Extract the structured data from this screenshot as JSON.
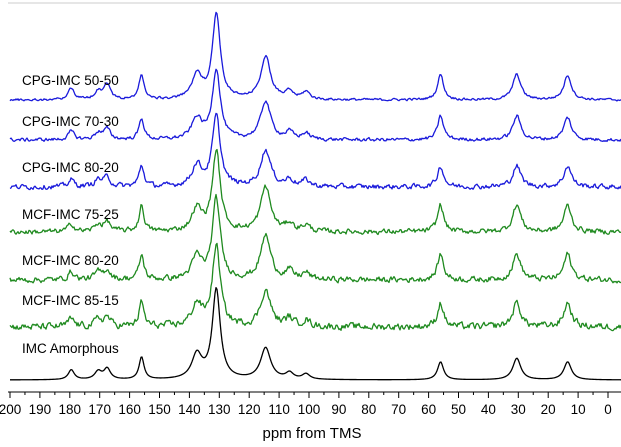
{
  "chart_data": {
    "type": "line",
    "title": "",
    "xlabel": "ppm from TMS",
    "ylabel": "",
    "xlim": [
      200,
      0
    ],
    "x_reversed": true,
    "x_ticks": [
      200,
      190,
      180,
      170,
      160,
      150,
      140,
      130,
      120,
      110,
      100,
      90,
      80,
      70,
      60,
      50,
      40,
      30,
      20,
      10,
      0
    ],
    "grid": false,
    "legend": "none",
    "colors": {
      "cpg": "#1a1adb",
      "mcf": "#1f8a1f",
      "amorphous": "#000000"
    },
    "peaks_ppm": [
      179.5,
      170.5,
      167.5,
      156,
      137.5,
      131,
      114.5,
      106.5,
      101,
      56,
      30.5,
      13.5
    ],
    "series": [
      {
        "name": "CPG-IMC 50-50",
        "color": "#1a1adb",
        "noise": 0.02,
        "peaks": [
          [
            179.5,
            0.14,
            1.2
          ],
          [
            170.5,
            0.1,
            1.4
          ],
          [
            167.5,
            0.18,
            1.3
          ],
          [
            156,
            0.3,
            1.0
          ],
          [
            137.5,
            0.28,
            2.0
          ],
          [
            131,
            1.0,
            1.6
          ],
          [
            114.5,
            0.5,
            2.0
          ],
          [
            106.5,
            0.09,
            1.5
          ],
          [
            101,
            0.09,
            1.5
          ],
          [
            56,
            0.3,
            1.2
          ],
          [
            30.5,
            0.3,
            1.6
          ],
          [
            13.5,
            0.29,
            1.5
          ]
        ]
      },
      {
        "name": "CPG-IMC 70-30",
        "color": "#1a1adb",
        "noise": 0.035,
        "peaks": [
          [
            179.5,
            0.12,
            1.2
          ],
          [
            170.5,
            0.1,
            1.4
          ],
          [
            167.5,
            0.15,
            1.3
          ],
          [
            156,
            0.3,
            1.0
          ],
          [
            137.5,
            0.3,
            2.0
          ],
          [
            131,
            1.0,
            1.6
          ],
          [
            114.5,
            0.55,
            2.0
          ],
          [
            106.5,
            0.1,
            1.5
          ],
          [
            101,
            0.09,
            1.5
          ],
          [
            56,
            0.34,
            1.2
          ],
          [
            30.5,
            0.34,
            1.6
          ],
          [
            13.5,
            0.32,
            1.5
          ]
        ]
      },
      {
        "name": "CPG-IMC 80-20",
        "color": "#1a1adb",
        "noise": 0.05,
        "peaks": [
          [
            179.5,
            0.1,
            1.2
          ],
          [
            170.5,
            0.1,
            1.4
          ],
          [
            167.5,
            0.13,
            1.3
          ],
          [
            156,
            0.3,
            1.0
          ],
          [
            137.5,
            0.3,
            2.0
          ],
          [
            131,
            1.0,
            1.6
          ],
          [
            114.5,
            0.52,
            2.0
          ],
          [
            106.5,
            0.1,
            1.5
          ],
          [
            101,
            0.09,
            1.5
          ],
          [
            56,
            0.3,
            1.2
          ],
          [
            30.5,
            0.3,
            1.6
          ],
          [
            13.5,
            0.3,
            1.5
          ]
        ]
      },
      {
        "name": "MCF-IMC 75-25",
        "color": "#1f8a1f",
        "noise": 0.045,
        "peaks": [
          [
            179.5,
            0.1,
            1.2
          ],
          [
            170.5,
            0.09,
            1.4
          ],
          [
            167.5,
            0.12,
            1.3
          ],
          [
            156,
            0.32,
            1.0
          ],
          [
            137.5,
            0.28,
            2.0
          ],
          [
            131,
            1.0,
            1.6
          ],
          [
            114.5,
            0.56,
            2.0
          ],
          [
            106.5,
            0.1,
            1.5
          ],
          [
            101,
            0.08,
            1.5
          ],
          [
            56,
            0.34,
            1.2
          ],
          [
            30.5,
            0.34,
            1.6
          ],
          [
            13.5,
            0.33,
            1.5
          ]
        ]
      },
      {
        "name": "MCF-IMC 80-20",
        "color": "#1f8a1f",
        "noise": 0.05,
        "peaks": [
          [
            179.5,
            0.1,
            1.2
          ],
          [
            170.5,
            0.09,
            1.4
          ],
          [
            167.5,
            0.12,
            1.3
          ],
          [
            156,
            0.3,
            1.0
          ],
          [
            137.5,
            0.28,
            2.0
          ],
          [
            131,
            1.0,
            1.6
          ],
          [
            114.5,
            0.55,
            2.0
          ],
          [
            106.5,
            0.1,
            1.5
          ],
          [
            101,
            0.08,
            1.5
          ],
          [
            56,
            0.32,
            1.2
          ],
          [
            30.5,
            0.32,
            1.6
          ],
          [
            13.5,
            0.32,
            1.5
          ]
        ]
      },
      {
        "name": "MCF-IMC 85-15",
        "color": "#1f8a1f",
        "noise": 0.06,
        "peaks": [
          [
            179.5,
            0.1,
            1.2
          ],
          [
            170.5,
            0.09,
            1.4
          ],
          [
            167.5,
            0.12,
            1.3
          ],
          [
            156,
            0.3,
            1.0
          ],
          [
            137.5,
            0.28,
            2.0
          ],
          [
            131,
            1.0,
            1.6
          ],
          [
            114.5,
            0.45,
            2.0
          ],
          [
            106.5,
            0.1,
            1.5
          ],
          [
            101,
            0.08,
            1.5
          ],
          [
            56,
            0.3,
            1.2
          ],
          [
            30.5,
            0.3,
            1.6
          ],
          [
            13.5,
            0.3,
            1.5
          ]
        ]
      },
      {
        "name": "IMC Amorphous",
        "color": "#000000",
        "noise": 0.0,
        "peaks": [
          [
            179.5,
            0.11,
            1.2
          ],
          [
            170.5,
            0.09,
            1.4
          ],
          [
            167.5,
            0.12,
            1.3
          ],
          [
            156,
            0.25,
            1.0
          ],
          [
            137.5,
            0.27,
            2.0
          ],
          [
            131,
            1.0,
            1.6
          ],
          [
            114.5,
            0.35,
            2.0
          ],
          [
            106.5,
            0.07,
            1.5
          ],
          [
            101,
            0.06,
            1.5
          ],
          [
            56,
            0.2,
            1.2
          ],
          [
            30.5,
            0.24,
            1.6
          ],
          [
            13.5,
            0.2,
            1.5
          ]
        ]
      }
    ]
  }
}
